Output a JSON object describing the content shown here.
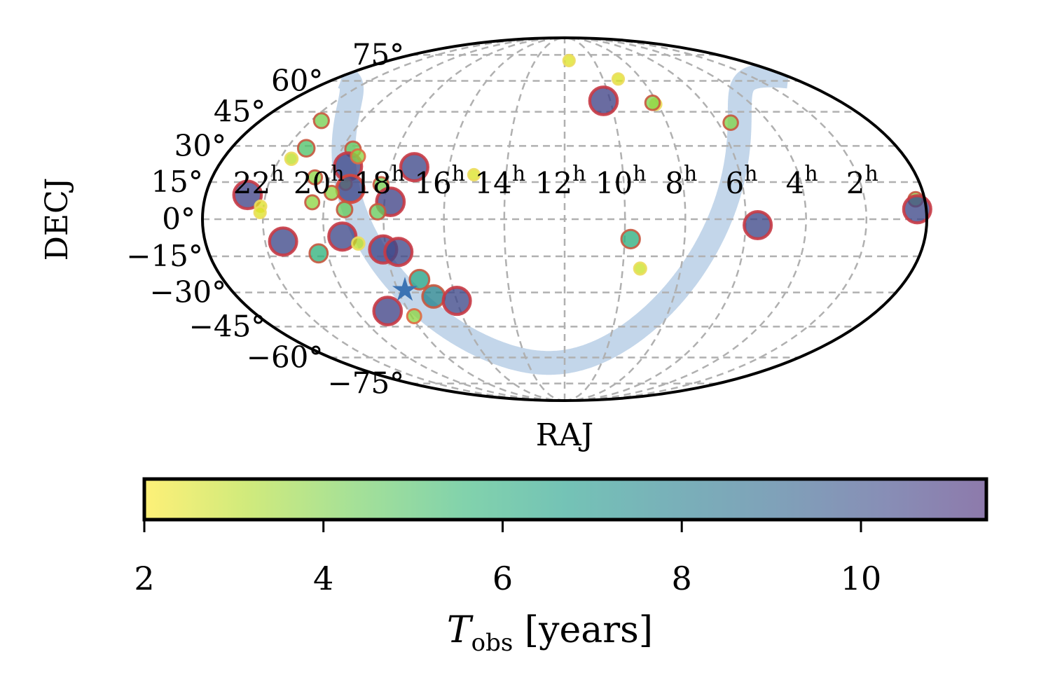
{
  "chart_data": {
    "type": "scatter",
    "projection": "mollweide",
    "xlabel": "RAJ",
    "ylabel": "DECJ",
    "ra_ticks": [
      {
        "hours": 22,
        "label": "22",
        "sup": "h"
      },
      {
        "hours": 20,
        "label": "20",
        "sup": "h"
      },
      {
        "hours": 18,
        "label": "18",
        "sup": "h"
      },
      {
        "hours": 16,
        "label": "16",
        "sup": "h"
      },
      {
        "hours": 14,
        "label": "14",
        "sup": "h"
      },
      {
        "hours": 12,
        "label": "12",
        "sup": "h"
      },
      {
        "hours": 10,
        "label": "10",
        "sup": "h"
      },
      {
        "hours": 8,
        "label": "8",
        "sup": "h"
      },
      {
        "hours": 6,
        "label": "6",
        "sup": "h"
      },
      {
        "hours": 4,
        "label": "4",
        "sup": "h"
      },
      {
        "hours": 2,
        "label": "2",
        "sup": "h"
      }
    ],
    "dec_ticks": [
      {
        "deg": 75,
        "label": "75°"
      },
      {
        "deg": 60,
        "label": "60°"
      },
      {
        "deg": 45,
        "label": "45°"
      },
      {
        "deg": 30,
        "label": "30°"
      },
      {
        "deg": 15,
        "label": "15°"
      },
      {
        "deg": 0,
        "label": "0°"
      },
      {
        "deg": -15,
        "label": "−15°"
      },
      {
        "deg": -30,
        "label": "−30°"
      },
      {
        "deg": -45,
        "label": "−45°"
      },
      {
        "deg": -60,
        "label": "−60°"
      },
      {
        "deg": -75,
        "label": "−75°"
      }
    ],
    "grid": true,
    "colorbar": {
      "label": "T",
      "label_sub": "obs",
      "label_rest": " [years]",
      "min": 2,
      "max": 11.4,
      "colormap": "viridis-reversed",
      "ticks": [
        {
          "value": 2,
          "label": "2"
        },
        {
          "value": 4,
          "label": "4"
        },
        {
          "value": 6,
          "label": "6"
        },
        {
          "value": 8,
          "label": "8"
        },
        {
          "value": 10,
          "label": "10"
        }
      ]
    },
    "colors": {
      "band": "#c3d6ea",
      "star": "#3c73b3",
      "grid": "#b0b0b0"
    },
    "points": [
      {
        "ra_h": 22.6,
        "dec": 9.8,
        "tobs": 10.5,
        "edge": "#c83a45"
      },
      {
        "ra_h": 21.6,
        "dec": 41.0,
        "tobs": 4.2,
        "edge": "#c8583f"
      },
      {
        "ra_h": 21.6,
        "dec": 24.6,
        "tobs": 3.0,
        "edge": "#ecdd5e"
      },
      {
        "ra_h": 21.3,
        "dec": 29.0,
        "tobs": 5.0,
        "edge": "#c8583f"
      },
      {
        "ra_h": 22.1,
        "dec": 5.2,
        "tobs": 2.5,
        "edge": "#ecdd5e"
      },
      {
        "ra_h": 22.1,
        "dec": 2.7,
        "tobs": 2.5,
        "edge": "#ecdd5e"
      },
      {
        "ra_h": 21.4,
        "dec": -9.0,
        "tobs": 10.3,
        "edge": "#c83a45"
      },
      {
        "ra_h": 20.5,
        "dec": 16.9,
        "tobs": 3.8,
        "edge": "#c8583f"
      },
      {
        "ra_h": 20.4,
        "dec": 6.8,
        "tobs": 3.8,
        "edge": "#c8583f"
      },
      {
        "ra_h": 20.3,
        "dec": -13.8,
        "tobs": 5.8,
        "edge": "#c8583f"
      },
      {
        "ra_h": 19.6,
        "dec": 28.6,
        "tobs": 4.5,
        "edge": "#c8583f"
      },
      {
        "ra_h": 19.5,
        "dec": 21.4,
        "tobs": 10.3,
        "edge": "#c83a45"
      },
      {
        "ra_h": 19.3,
        "dec": 25.6,
        "tobs": 3.8,
        "edge": "#e06a44"
      },
      {
        "ra_h": 19.4,
        "dec": 14.3,
        "tobs": 3.0,
        "edge": "#f07a3c"
      },
      {
        "ra_h": 19.2,
        "dec": 12.2,
        "tobs": 10.3,
        "edge": "#d9453b"
      },
      {
        "ra_h": 19.8,
        "dec": 10.6,
        "tobs": 3.8,
        "edge": "#c8583f"
      },
      {
        "ra_h": 19.3,
        "dec": 3.9,
        "tobs": 4.5,
        "edge": "#c8583f"
      },
      {
        "ra_h": 19.4,
        "dec": -7.0,
        "tobs": 10.3,
        "edge": "#c83a45"
      },
      {
        "ra_h": 18.9,
        "dec": -9.8,
        "tobs": 3.0,
        "edge": "#ecdd5e"
      },
      {
        "ra_h": 18.2,
        "dec": 14.0,
        "tobs": 4.2,
        "edge": "#c8583f"
      },
      {
        "ra_h": 17.8,
        "dec": 7.0,
        "tobs": 10.5,
        "edge": "#c83a45"
      },
      {
        "ra_h": 18.2,
        "dec": 3.0,
        "tobs": 4.5,
        "edge": "#c8583f"
      },
      {
        "ra_h": 18.1,
        "dec": -12.2,
        "tobs": 10.3,
        "edge": "#c83a45"
      },
      {
        "ra_h": 17.6,
        "dec": -13.2,
        "tobs": 10.3,
        "edge": "#c83a45"
      },
      {
        "ra_h": 17.1,
        "dec": -24.6,
        "tobs": 6.5,
        "edge": "#c8583f"
      },
      {
        "ra_h": 16.8,
        "dec": -31.7,
        "tobs": 7.8,
        "edge": "#c8583f"
      },
      {
        "ra_h": 16.0,
        "dec": -33.6,
        "tobs": 10.3,
        "edge": "#c83a45"
      },
      {
        "ra_h": 18.8,
        "dec": -38.0,
        "tobs": 10.5,
        "edge": "#c83a45"
      },
      {
        "ra_h": 17.9,
        "dec": -40.3,
        "tobs": 3.8,
        "edge": "#e06a44"
      },
      {
        "ra_h": 17.2,
        "dec": 21.1,
        "tobs": 10.3,
        "edge": "#c83a45"
      },
      {
        "ra_h": 15.1,
        "dec": 18.0,
        "tobs": 2.5,
        "edge": "#ecdd5e"
      },
      {
        "ra_h": 11.7,
        "dec": 71.4,
        "tobs": 2.5,
        "edge": "#ecdd5e"
      },
      {
        "ra_h": 10.3,
        "dec": 50.1,
        "tobs": 10.5,
        "edge": "#c83a45"
      },
      {
        "ra_h": 9.2,
        "dec": 61.0,
        "tobs": 2.5,
        "edge": "#ecdd5e"
      },
      {
        "ra_h": 8.1,
        "dec": 48.5,
        "tobs": 2.5,
        "edge": "#ecdd5e"
      },
      {
        "ra_h": 8.2,
        "dec": 49.2,
        "tobs": 4.0,
        "edge": "#c8583f"
      },
      {
        "ra_h": 5.5,
        "dec": 40.1,
        "tobs": 4.0,
        "edge": "#c8583f"
      },
      {
        "ra_h": 5.6,
        "dec": -2.4,
        "tobs": 10.3,
        "edge": "#c83a45"
      },
      {
        "ra_h": 9.8,
        "dec": -8.0,
        "tobs": 6.0,
        "edge": "#c8583f"
      },
      {
        "ra_h": 9.4,
        "dec": -20.0,
        "tobs": 2.8,
        "edge": "#ecdd5e"
      },
      {
        "ra_h": 0.3,
        "dec": 8.0,
        "tobs": 4.0,
        "edge": "#c8583f"
      },
      {
        "ra_h": 0.3,
        "dec": 4.0,
        "tobs": 10.3,
        "edge": "#c83a45"
      }
    ],
    "star": {
      "ra_h": 17.75,
      "dec": -29.0
    }
  }
}
